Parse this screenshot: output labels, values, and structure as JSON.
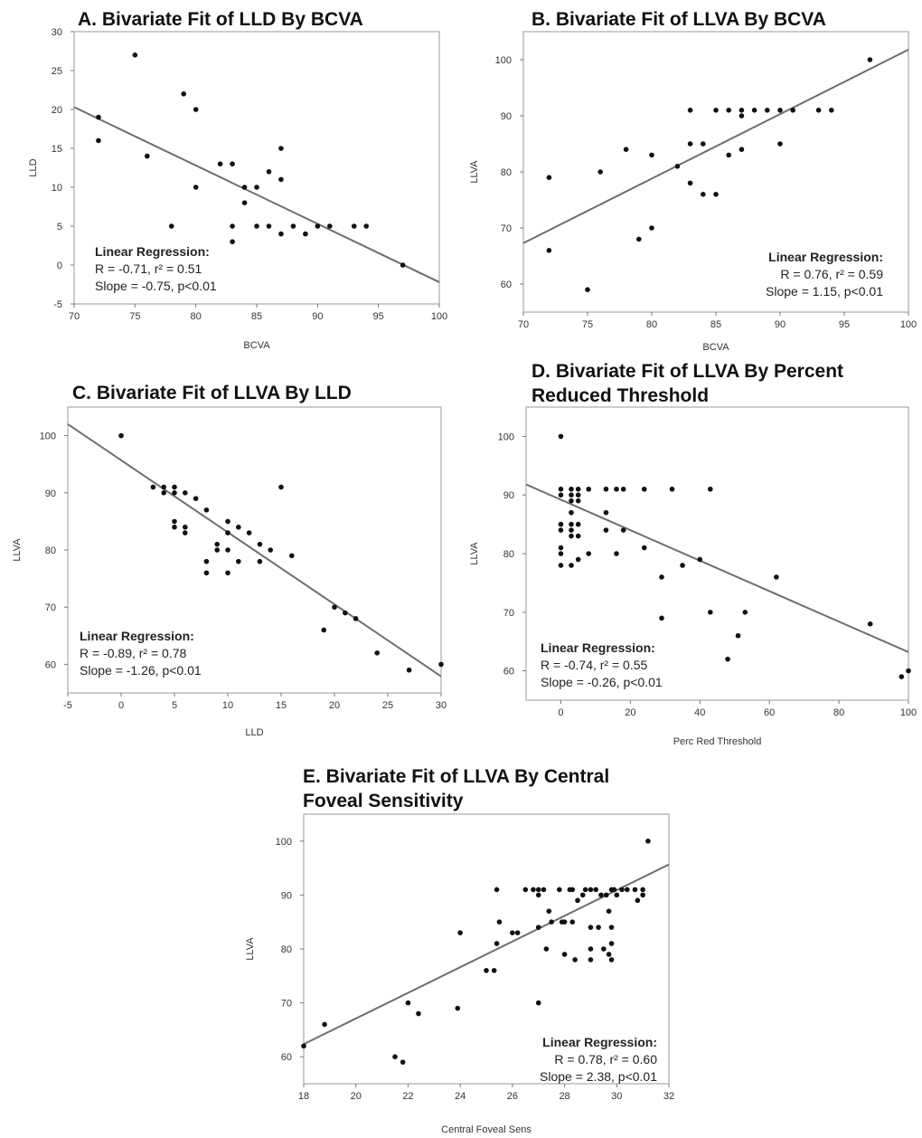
{
  "chart_data": [
    {
      "id": "A",
      "type": "scatter",
      "title": "A. Bivariate Fit of LLD By BCVA",
      "title_lines": [
        "A. Bivariate Fit of LLD By BCVA"
      ],
      "xlabel": "BCVA",
      "ylabel": "LLD",
      "xlim": [
        70,
        100
      ],
      "ylim": [
        -5,
        30
      ],
      "xticks": [
        70,
        75,
        80,
        85,
        90,
        95,
        100
      ],
      "yticks": [
        -5,
        0,
        5,
        10,
        15,
        20,
        25,
        30
      ],
      "grid": false,
      "points": [
        [
          72,
          19
        ],
        [
          72,
          16
        ],
        [
          75,
          27
        ],
        [
          76,
          14
        ],
        [
          78,
          5
        ],
        [
          79,
          22
        ],
        [
          80,
          20
        ],
        [
          80,
          10
        ],
        [
          82,
          13
        ],
        [
          83,
          13
        ],
        [
          83,
          5
        ],
        [
          83,
          3
        ],
        [
          84,
          10
        ],
        [
          84,
          8
        ],
        [
          85,
          10
        ],
        [
          85,
          5
        ],
        [
          86,
          12
        ],
        [
          86,
          5
        ],
        [
          87,
          15
        ],
        [
          87,
          11
        ],
        [
          87,
          4
        ],
        [
          88,
          5
        ],
        [
          89,
          4
        ],
        [
          90,
          5
        ],
        [
          91,
          5
        ],
        [
          93,
          5
        ],
        [
          94,
          5
        ],
        [
          97,
          0
        ]
      ],
      "fit_line": {
        "slope": -0.75,
        "intercept": 72.8
      },
      "stats": {
        "heading": "Linear Regression:",
        "r_text": "R = -0.71, r² = 0.51",
        "slope_text": "Slope = -0.75, p<0.01",
        "align": "left"
      }
    },
    {
      "id": "B",
      "type": "scatter",
      "title": "B. Bivariate Fit of LLVA By BCVA",
      "title_lines": [
        "B. Bivariate Fit of LLVA By BCVA"
      ],
      "xlabel": "BCVA",
      "ylabel": "LLVA",
      "xlim": [
        70,
        100
      ],
      "ylim": [
        55,
        105
      ],
      "xticks": [
        70,
        75,
        80,
        85,
        90,
        95,
        100
      ],
      "yticks": [
        60,
        70,
        80,
        90,
        100
      ],
      "grid": false,
      "points": [
        [
          72,
          79
        ],
        [
          72,
          66
        ],
        [
          75,
          59
        ],
        [
          76,
          80
        ],
        [
          78,
          84
        ],
        [
          79,
          68
        ],
        [
          80,
          83
        ],
        [
          80,
          70
        ],
        [
          82,
          81
        ],
        [
          83,
          91
        ],
        [
          83,
          85
        ],
        [
          83,
          78
        ],
        [
          84,
          85
        ],
        [
          84,
          76
        ],
        [
          85,
          91
        ],
        [
          85,
          76
        ],
        [
          86,
          91
        ],
        [
          86,
          83
        ],
        [
          87,
          91
        ],
        [
          87,
          90
        ],
        [
          87,
          84
        ],
        [
          88,
          91
        ],
        [
          89,
          91
        ],
        [
          90,
          91
        ],
        [
          90,
          85
        ],
        [
          91,
          91
        ],
        [
          93,
          91
        ],
        [
          94,
          91
        ],
        [
          97,
          100
        ]
      ],
      "fit_line": {
        "slope": 1.15,
        "intercept": -13.2
      },
      "stats": {
        "heading": "Linear Regression:",
        "r_text": "R = 0.76, r² = 0.59",
        "slope_text": "Slope = 1.15, p<0.01",
        "align": "right"
      }
    },
    {
      "id": "C",
      "type": "scatter",
      "title": "C. Bivariate Fit of LLVA By LLD",
      "title_lines": [
        "C. Bivariate Fit of LLVA By LLD"
      ],
      "xlabel": "LLD",
      "ylabel": "LLVA",
      "xlim": [
        -5,
        30
      ],
      "ylim": [
        55,
        105
      ],
      "xticks": [
        -5,
        0,
        5,
        10,
        15,
        20,
        25,
        30
      ],
      "yticks": [
        60,
        70,
        80,
        90,
        100
      ],
      "grid": false,
      "points": [
        [
          0,
          100
        ],
        [
          3,
          91
        ],
        [
          4,
          91
        ],
        [
          4,
          90
        ],
        [
          5,
          91
        ],
        [
          5,
          90
        ],
        [
          5,
          85
        ],
        [
          5,
          84
        ],
        [
          6,
          90
        ],
        [
          6,
          84
        ],
        [
          6,
          83
        ],
        [
          7,
          89
        ],
        [
          8,
          87
        ],
        [
          8,
          78
        ],
        [
          8,
          76
        ],
        [
          9,
          81
        ],
        [
          9,
          80
        ],
        [
          10,
          85
        ],
        [
          10,
          83
        ],
        [
          10,
          80
        ],
        [
          10,
          76
        ],
        [
          11,
          84
        ],
        [
          11,
          78
        ],
        [
          12,
          83
        ],
        [
          13,
          81
        ],
        [
          13,
          78
        ],
        [
          14,
          80
        ],
        [
          15,
          91
        ],
        [
          16,
          79
        ],
        [
          19,
          66
        ],
        [
          20,
          70
        ],
        [
          21,
          69
        ],
        [
          22,
          68
        ],
        [
          24,
          62
        ],
        [
          27,
          59
        ],
        [
          30,
          60
        ]
      ],
      "fit_line": {
        "slope": -1.26,
        "intercept": 95.7
      },
      "stats": {
        "heading": "Linear Regression:",
        "r_text": "R = -0.89, r² = 0.78",
        "slope_text": "Slope = -1.26, p<0.01",
        "align": "left"
      }
    },
    {
      "id": "D",
      "type": "scatter",
      "title": "D. Bivariate Fit of LLVA By Percent Reduced Threshold",
      "title_lines": [
        "D. Bivariate Fit of LLVA By Percent",
        "Reduced Threshold"
      ],
      "xlabel": "Perc Red Threshold",
      "ylabel": "LLVA",
      "xlim": [
        -10,
        100
      ],
      "ylim": [
        55,
        105
      ],
      "xticks": [
        0,
        20,
        40,
        60,
        80,
        100
      ],
      "yticks": [
        60,
        70,
        80,
        90,
        100
      ],
      "grid": false,
      "points": [
        [
          0,
          100
        ],
        [
          0,
          91
        ],
        [
          0,
          90
        ],
        [
          0,
          85
        ],
        [
          0,
          84
        ],
        [
          0,
          81
        ],
        [
          0,
          80
        ],
        [
          0,
          78
        ],
        [
          3,
          91
        ],
        [
          3,
          90
        ],
        [
          3,
          89
        ],
        [
          3,
          87
        ],
        [
          3,
          85
        ],
        [
          3,
          84
        ],
        [
          3,
          83
        ],
        [
          3,
          78
        ],
        [
          5,
          91
        ],
        [
          5,
          90
        ],
        [
          5,
          89
        ],
        [
          5,
          85
        ],
        [
          5,
          83
        ],
        [
          5,
          79
        ],
        [
          8,
          91
        ],
        [
          8,
          80
        ],
        [
          13,
          91
        ],
        [
          13,
          87
        ],
        [
          13,
          84
        ],
        [
          16,
          91
        ],
        [
          16,
          80
        ],
        [
          18,
          91
        ],
        [
          18,
          84
        ],
        [
          24,
          91
        ],
        [
          24,
          81
        ],
        [
          29,
          76
        ],
        [
          29,
          69
        ],
        [
          32,
          91
        ],
        [
          35,
          78
        ],
        [
          40,
          79
        ],
        [
          43,
          91
        ],
        [
          43,
          70
        ],
        [
          48,
          62
        ],
        [
          51,
          66
        ],
        [
          53,
          70
        ],
        [
          62,
          76
        ],
        [
          89,
          68
        ],
        [
          98,
          59
        ],
        [
          100,
          60
        ]
      ],
      "fit_line": {
        "slope": -0.26,
        "intercept": 89.2
      },
      "stats": {
        "heading": "Linear Regression:",
        "r_text": "R = -0.74, r² = 0.55",
        "slope_text": "Slope = -0.26, p<0.01",
        "align": "left"
      }
    },
    {
      "id": "E",
      "type": "scatter",
      "title": "E. Bivariate Fit of LLVA By Central Foveal Sensitivity",
      "title_lines": [
        "E. Bivariate Fit of LLVA By Central",
        "Foveal Sensitivity"
      ],
      "xlabel": "Central Foveal Sens",
      "ylabel": "LLVA",
      "xlim": [
        18,
        32
      ],
      "ylim": [
        55,
        105
      ],
      "xticks": [
        18,
        20,
        22,
        24,
        26,
        28,
        30,
        32
      ],
      "yticks": [
        60,
        70,
        80,
        90,
        100
      ],
      "grid": false,
      "points": [
        [
          18,
          62
        ],
        [
          18.8,
          66
        ],
        [
          21.5,
          60
        ],
        [
          21.8,
          59
        ],
        [
          22,
          70
        ],
        [
          22.4,
          68
        ],
        [
          23.9,
          69
        ],
        [
          24,
          83
        ],
        [
          25,
          76
        ],
        [
          25.3,
          76
        ],
        [
          25.4,
          91
        ],
        [
          25.4,
          81
        ],
        [
          25.5,
          85
        ],
        [
          26,
          83
        ],
        [
          26.2,
          83
        ],
        [
          26.5,
          91
        ],
        [
          26.8,
          91
        ],
        [
          27,
          91
        ],
        [
          27,
          90
        ],
        [
          27,
          84
        ],
        [
          27,
          70
        ],
        [
          27.2,
          91
        ],
        [
          27.3,
          80
        ],
        [
          27.4,
          87
        ],
        [
          27.5,
          85
        ],
        [
          27.8,
          91
        ],
        [
          27.9,
          85
        ],
        [
          28,
          85
        ],
        [
          28,
          79
        ],
        [
          28.2,
          91
        ],
        [
          28.3,
          91
        ],
        [
          28.3,
          85
        ],
        [
          28.4,
          78
        ],
        [
          28.5,
          89
        ],
        [
          28.7,
          90
        ],
        [
          28.8,
          91
        ],
        [
          29,
          91
        ],
        [
          29,
          84
        ],
        [
          29,
          80
        ],
        [
          29,
          78
        ],
        [
          29.2,
          91
        ],
        [
          29.3,
          84
        ],
        [
          29.4,
          90
        ],
        [
          29.5,
          80
        ],
        [
          29.6,
          90
        ],
        [
          29.7,
          87
        ],
        [
          29.7,
          79
        ],
        [
          29.8,
          91
        ],
        [
          29.8,
          84
        ],
        [
          29.8,
          81
        ],
        [
          29.8,
          78
        ],
        [
          29.9,
          91
        ],
        [
          30,
          90
        ],
        [
          30.2,
          91
        ],
        [
          30.4,
          91
        ],
        [
          30.7,
          91
        ],
        [
          30.8,
          89
        ],
        [
          31,
          91
        ],
        [
          31,
          90
        ],
        [
          31.2,
          100
        ]
      ],
      "fit_line": {
        "slope": 2.38,
        "intercept": 19.5
      },
      "stats": {
        "heading": "Linear Regression:",
        "r_text": "R = 0.78, r² = 0.60",
        "slope_text": "Slope = 2.38, p<0.01",
        "align": "right"
      }
    }
  ]
}
